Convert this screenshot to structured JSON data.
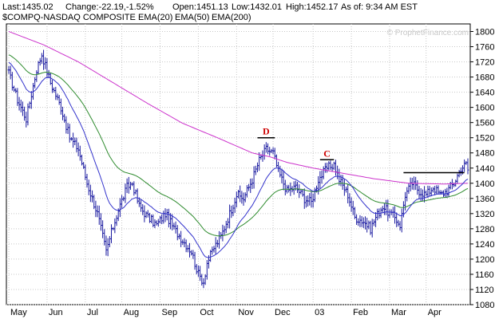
{
  "header": {
    "items": [
      {
        "text": "Last:1435.02",
        "color": "#000000"
      },
      {
        "text": "Change:-22.19,-1.52%",
        "color": "#000000"
      },
      {
        "text": "Open:1451.13",
        "color": "#000000"
      },
      {
        "text": "Low:1432.01",
        "color": "#000000"
      },
      {
        "text": "High:1452.17",
        "color": "#000000"
      },
      {
        "text": "As of: 9:34 AM EST",
        "color": "#000000"
      }
    ],
    "legend": [
      {
        "text": "$COMPQ-NASDAQ COMPOSITE",
        "color": "#1a1aa0"
      },
      {
        "text": "EMA(20)",
        "color": "#3333cc"
      },
      {
        "text": "EMA(50)",
        "color": "#2e8b2e"
      },
      {
        "text": "EMA(200)",
        "color": "#cc33cc"
      }
    ]
  },
  "watermark": "© ProphetFinance.com",
  "chart_data": {
    "type": "ohlc",
    "ylim": [
      1080,
      1820
    ],
    "y_ticks": [
      1080,
      1120,
      1160,
      1200,
      1240,
      1280,
      1320,
      1360,
      1400,
      1440,
      1480,
      1520,
      1560,
      1600,
      1640,
      1680,
      1720,
      1760,
      1800
    ],
    "x_labels": [
      "May",
      "Jun",
      "Jul",
      "Aug",
      "Sep",
      "Oct",
      "Nov",
      "Dec",
      "03",
      "Feb",
      "Mar",
      "Apr"
    ],
    "x_label_positions": [
      0,
      22,
      44,
      65,
      87,
      109,
      131,
      152,
      175,
      197,
      219,
      240
    ],
    "bar_count": 265,
    "colors": {
      "price": "#1a1aa0",
      "ema20": "#3333cc",
      "ema50": "#2e8b2e",
      "ema200": "#cc33cc",
      "annotation": "#cc0000",
      "resistance": "#000000"
    },
    "key_closes": [
      [
        0,
        1690
      ],
      [
        5,
        1620
      ],
      [
        10,
        1570
      ],
      [
        16,
        1700
      ],
      [
        19,
        1740
      ],
      [
        24,
        1665
      ],
      [
        30,
        1600
      ],
      [
        35,
        1520
      ],
      [
        40,
        1490
      ],
      [
        45,
        1400
      ],
      [
        51,
        1320
      ],
      [
        56,
        1220
      ],
      [
        59,
        1270
      ],
      [
        63,
        1330
      ],
      [
        68,
        1390
      ],
      [
        71,
        1400
      ],
      [
        75,
        1340
      ],
      [
        80,
        1310
      ],
      [
        85,
        1290
      ],
      [
        90,
        1320
      ],
      [
        95,
        1280
      ],
      [
        100,
        1250
      ],
      [
        105,
        1220
      ],
      [
        109,
        1160
      ],
      [
        112,
        1140
      ],
      [
        114,
        1190
      ],
      [
        118,
        1230
      ],
      [
        122,
        1260
      ],
      [
        127,
        1320
      ],
      [
        131,
        1370
      ],
      [
        135,
        1360
      ],
      [
        140,
        1410
      ],
      [
        144,
        1460
      ],
      [
        148,
        1490
      ],
      [
        152,
        1480
      ],
      [
        155,
        1430
      ],
      [
        160,
        1380
      ],
      [
        165,
        1390
      ],
      [
        170,
        1360
      ],
      [
        174,
        1350
      ],
      [
        178,
        1410
      ],
      [
        183,
        1440
      ],
      [
        187,
        1450
      ],
      [
        190,
        1410
      ],
      [
        195,
        1370
      ],
      [
        199,
        1310
      ],
      [
        204,
        1300
      ],
      [
        208,
        1280
      ],
      [
        211,
        1310
      ],
      [
        215,
        1340
      ],
      [
        219,
        1320
      ],
      [
        222,
        1310
      ],
      [
        225,
        1290
      ],
      [
        228,
        1370
      ],
      [
        232,
        1400
      ],
      [
        236,
        1380
      ],
      [
        240,
        1370
      ],
      [
        244,
        1390
      ],
      [
        248,
        1370
      ],
      [
        252,
        1380
      ],
      [
        256,
        1400
      ],
      [
        260,
        1440
      ],
      [
        263,
        1450
      ],
      [
        264,
        1435
      ]
    ],
    "ema200_points": [
      [
        0,
        1800
      ],
      [
        20,
        1765
      ],
      [
        40,
        1720
      ],
      [
        60,
        1665
      ],
      [
        80,
        1610
      ],
      [
        100,
        1558
      ],
      [
        120,
        1520
      ],
      [
        130,
        1500
      ],
      [
        140,
        1480
      ],
      [
        150,
        1470
      ],
      [
        160,
        1455
      ],
      [
        175,
        1440
      ],
      [
        190,
        1428
      ],
      [
        210,
        1412
      ],
      [
        230,
        1400
      ],
      [
        250,
        1398
      ],
      [
        264,
        1400
      ]
    ],
    "annotations": [
      {
        "label": "D",
        "bar": 148,
        "level": 1520,
        "from_bar": 143,
        "to_bar": 153
      },
      {
        "label": "C",
        "bar": 183,
        "level": 1462,
        "from_bar": 179,
        "to_bar": 187
      }
    ],
    "resistance": {
      "level": 1428,
      "from_bar": 227,
      "to_bar": 262
    }
  }
}
